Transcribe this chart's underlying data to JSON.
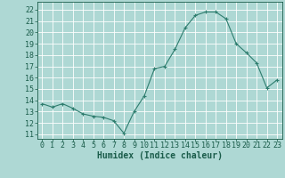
{
  "x": [
    0,
    1,
    2,
    3,
    4,
    5,
    6,
    7,
    8,
    9,
    10,
    11,
    12,
    13,
    14,
    15,
    16,
    17,
    18,
    19,
    20,
    21,
    22,
    23
  ],
  "y": [
    13.7,
    13.4,
    13.7,
    13.3,
    12.8,
    12.6,
    12.5,
    12.2,
    11.1,
    13.0,
    14.4,
    16.8,
    17.0,
    18.5,
    20.4,
    21.5,
    21.8,
    21.8,
    21.2,
    19.0,
    18.2,
    17.3,
    15.1,
    15.8
  ],
  "line_color": "#2e7d6e",
  "marker": "+",
  "marker_size": 3,
  "bg_color": "#aed8d4",
  "grid_color": "#ffffff",
  "xlabel": "Humidex (Indice chaleur)",
  "ylabel_ticks": [
    11,
    12,
    13,
    14,
    15,
    16,
    17,
    18,
    19,
    20,
    21,
    22
  ],
  "ylim": [
    10.6,
    22.7
  ],
  "xlim": [
    -0.5,
    23.5
  ],
  "tick_color": "#1a5c4a",
  "label_fontsize": 7,
  "tick_fontsize": 6
}
